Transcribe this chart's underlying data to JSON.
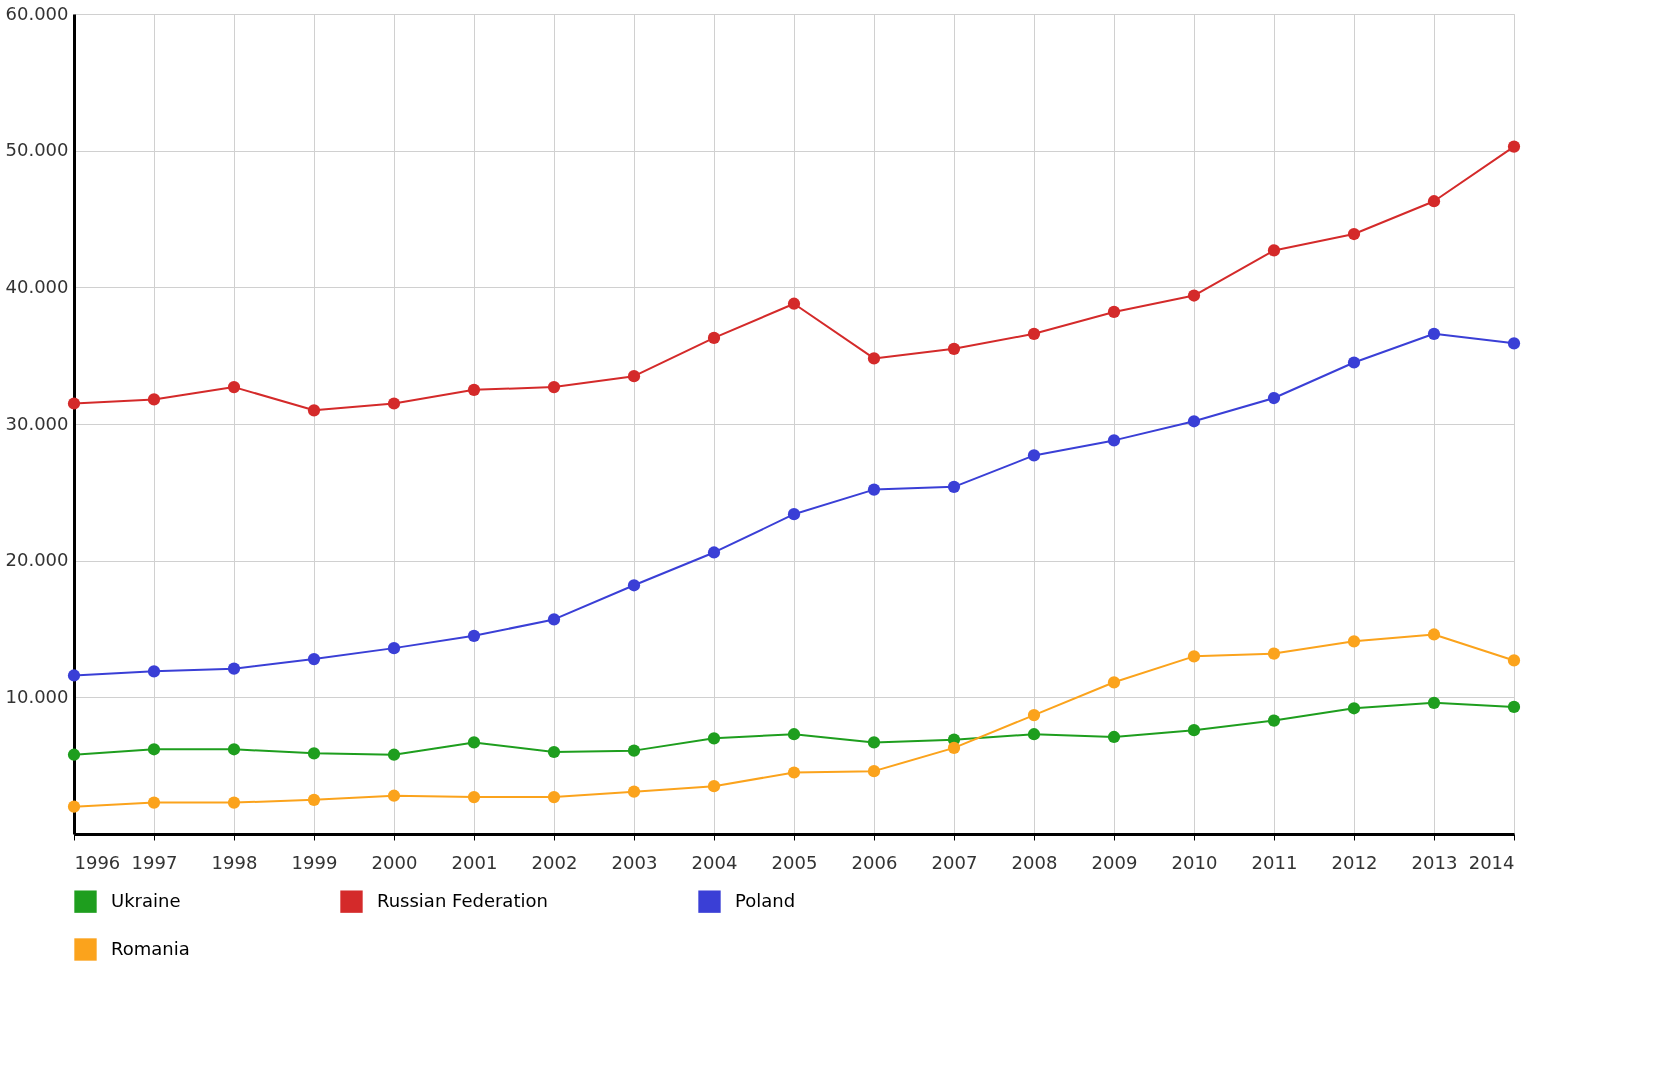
{
  "chart_data": {
    "type": "line",
    "categories": [
      "1996",
      "1997",
      "1998",
      "1999",
      "2000",
      "2001",
      "2002",
      "2003",
      "2004",
      "2005",
      "2006",
      "2007",
      "2008",
      "2009",
      "2010",
      "2011",
      "2012",
      "2013",
      "2014"
    ],
    "series": [
      {
        "name": "Ukraine",
        "color": "#1e9e1e",
        "values": [
          5800,
          6200,
          6200,
          5900,
          5800,
          6700,
          6000,
          6100,
          7000,
          7300,
          6700,
          6900,
          7300,
          7100,
          7600,
          8300,
          9200,
          9600,
          9300
        ]
      },
      {
        "name": "Russian Federation",
        "color": "#d42a2a",
        "values": [
          31500,
          31800,
          32700,
          31000,
          31500,
          32500,
          32700,
          33500,
          36300,
          38800,
          34800,
          35500,
          36600,
          38200,
          39400,
          42700,
          43900,
          46300,
          50300
        ]
      },
      {
        "name": "Poland",
        "color": "#3a3fd6",
        "values": [
          11600,
          11900,
          12100,
          12800,
          13600,
          14500,
          15700,
          18200,
          20600,
          23400,
          25200,
          25400,
          27700,
          28800,
          30200,
          31900,
          34500,
          36600,
          35900
        ]
      },
      {
        "name": "Romania",
        "color": "#fba31c",
        "values": [
          2000,
          2300,
          2300,
          2500,
          2800,
          2700,
          2700,
          3100,
          3500,
          4500,
          4600,
          6300,
          8700,
          11100,
          13000,
          13200,
          14100,
          14600,
          12700
        ]
      }
    ],
    "ylim": [
      0,
      60000
    ],
    "yticks": [
      {
        "value": 10000,
        "label": "10.000"
      },
      {
        "value": 20000,
        "label": "20.000"
      },
      {
        "value": 30000,
        "label": "30.000"
      },
      {
        "value": 40000,
        "label": "40.000"
      },
      {
        "value": 50000,
        "label": "50.000"
      },
      {
        "value": 60000,
        "label": "60.000"
      }
    ],
    "grid": true,
    "legend": "bottom",
    "marker": "circle",
    "line_style": "solid"
  }
}
